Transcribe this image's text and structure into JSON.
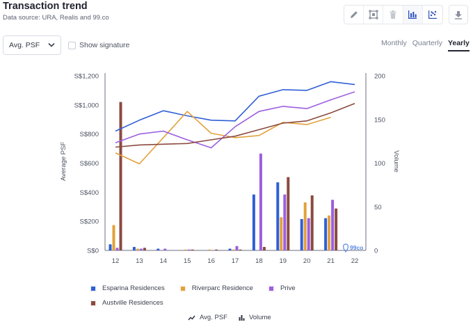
{
  "header": {
    "title": "Transaction trend",
    "subtitle": "Data source: URA, Realis and 99.co"
  },
  "toolbar": {
    "tools": [
      "pencil-icon",
      "select-area-icon",
      "trash-icon",
      "bar-chart-icon",
      "scatter-plot-icon"
    ],
    "active_tool": "bar-chart-icon",
    "download": "download-icon"
  },
  "controls": {
    "metric_selected": "Avg. PSF",
    "signature_label": "Show signature",
    "signature_checked": false,
    "periods": [
      "Monthly",
      "Quarterly",
      "Yearly"
    ],
    "period_selected": "Yearly"
  },
  "chart_data": {
    "type": "bar",
    "combo": "bars show volume, lines show average PSF",
    "categories": [
      "12",
      "13",
      "14",
      "15",
      "16",
      "17",
      "18",
      "19",
      "20",
      "21",
      "22"
    ],
    "y_left": {
      "label": "Average PSF",
      "ticks": [
        "S$0",
        "S$200",
        "S$400",
        "S$600",
        "S$800",
        "S$1,000",
        "S$1,200"
      ],
      "range": [
        0,
        1200
      ]
    },
    "y_right": {
      "label": "Volume",
      "ticks": [
        "0",
        "50",
        "100",
        "150",
        "200"
      ],
      "range": [
        0,
        200
      ]
    },
    "grid": false,
    "legend_position": "bottom",
    "watermark": "99co",
    "series": [
      {
        "name": "Esparina Residences",
        "color": "#2f5fd6",
        "volume": [
          7,
          4,
          2,
          0,
          0,
          2,
          64,
          78,
          36,
          37,
          null
        ],
        "avg_psf": [
          820,
          895,
          960,
          925,
          895,
          890,
          1060,
          1105,
          1100,
          1160,
          1140
        ]
      },
      {
        "name": "Riverparc Residence",
        "color": "#e3a13b",
        "volume": [
          29,
          2,
          0,
          1,
          1,
          1,
          0,
          38,
          55,
          40,
          null
        ],
        "avg_psf": [
          670,
          595,
          775,
          955,
          805,
          775,
          790,
          880,
          865,
          915,
          null
        ]
      },
      {
        "name": "Prive",
        "color": "#9b5fe0",
        "volume": [
          3,
          2,
          2,
          1,
          0,
          5,
          111,
          64,
          37,
          58,
          null
        ],
        "avg_psf": [
          740,
          800,
          820,
          760,
          705,
          850,
          955,
          990,
          975,
          1035,
          1090
        ]
      },
      {
        "name": "Austville Residences",
        "color": "#8b4a3f",
        "volume": [
          170,
          3,
          0,
          1,
          1,
          1,
          4,
          84,
          63,
          48,
          null
        ],
        "avg_psf": [
          710,
          725,
          730,
          735,
          760,
          785,
          830,
          875,
          890,
          945,
          1010
        ]
      }
    ]
  },
  "view_mode": {
    "options": [
      {
        "label": "Avg. PSF",
        "icon": "trend-line-icon"
      },
      {
        "label": "Volume",
        "icon": "bar-volume-icon"
      }
    ]
  }
}
